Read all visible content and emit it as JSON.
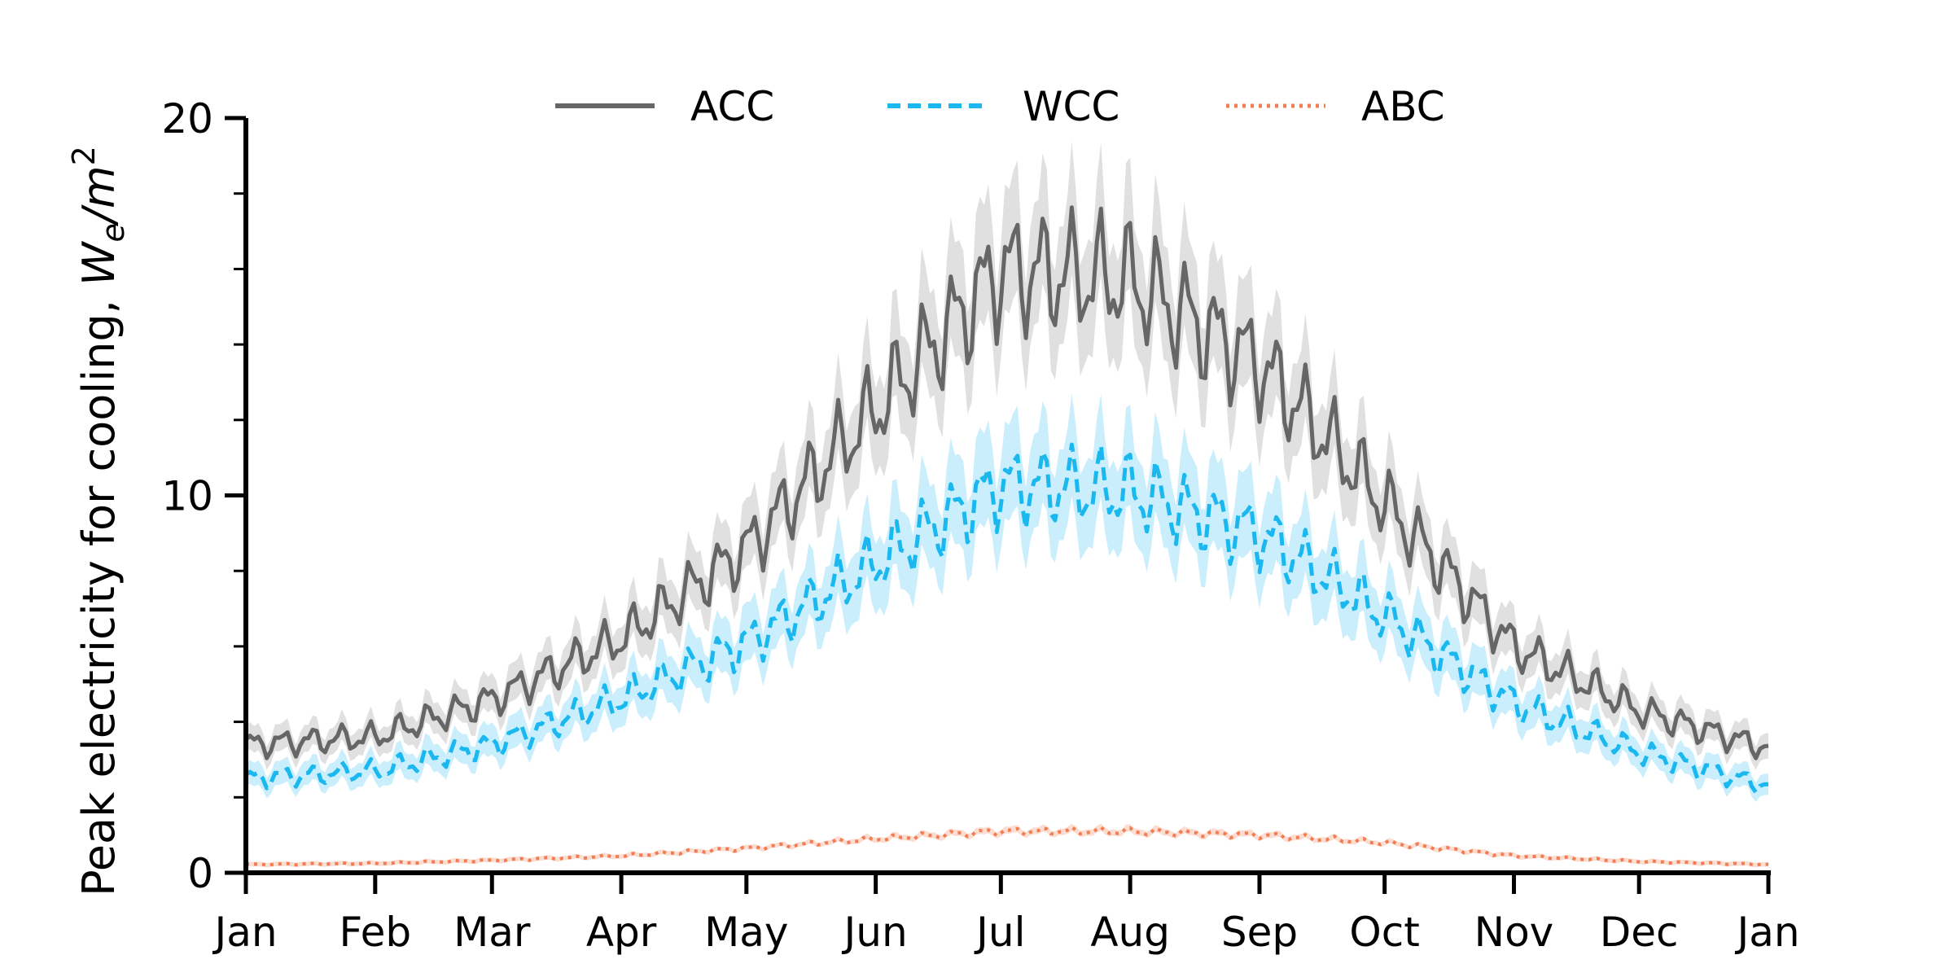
{
  "chart_data": {
    "type": "line",
    "title": "",
    "xlabel": "",
    "ylabel": "Peak electricity for cooling, ",
    "ylabel_math": "W",
    "ylabel_sub": "e",
    "ylabel_unit": "/m",
    "ylabel_sup": "2",
    "x_tick_labels": [
      "Jan",
      "Feb",
      "Mar",
      "Apr",
      "May",
      "Jun",
      "Jul",
      "Aug",
      "Sep",
      "Oct",
      "Nov",
      "Dec",
      "Jan"
    ],
    "x_tick_days": [
      0,
      31,
      59,
      90,
      120,
      151,
      181,
      212,
      243,
      273,
      304,
      334,
      365
    ],
    "xlim": [
      0,
      365
    ],
    "ylim": [
      0,
      20
    ],
    "y_ticks": [
      0,
      10,
      20
    ],
    "y_minor_ticks": [
      2,
      4,
      6,
      8,
      12,
      14,
      16,
      18
    ],
    "grid": false,
    "legend_position": "top-center",
    "series": [
      {
        "name": "ACC",
        "color": "#666666",
        "band_color": "#cccccc",
        "style": "solid",
        "monthly_means": [
          3.4,
          3.6,
          4.6,
          6.2,
          8.6,
          12.3,
          16.0,
          15.7,
          13.5,
          9.8,
          6.0,
          4.3,
          3.3
        ],
        "amplitude_ratio": 0.12,
        "band_ratio": 0.1
      },
      {
        "name": "WCC",
        "color": "#1ab8ef",
        "band_color": "#a6e3f8",
        "style": "dashed",
        "monthly_means": [
          2.5,
          2.7,
          3.4,
          4.6,
          6.1,
          8.2,
          10.3,
          10.1,
          9.0,
          6.8,
          4.5,
          3.2,
          2.3
        ],
        "amplitude_ratio": 0.12,
        "band_ratio": 0.12
      },
      {
        "name": "ABC",
        "color": "#f47c52",
        "band_color": "#f9c6b3",
        "style": "dotted",
        "monthly_means": [
          0.22,
          0.25,
          0.33,
          0.45,
          0.65,
          0.9,
          1.1,
          1.1,
          1.0,
          0.8,
          0.45,
          0.3,
          0.22
        ],
        "amplitude_ratio": 0.1,
        "band_ratio": 0.08
      }
    ]
  }
}
